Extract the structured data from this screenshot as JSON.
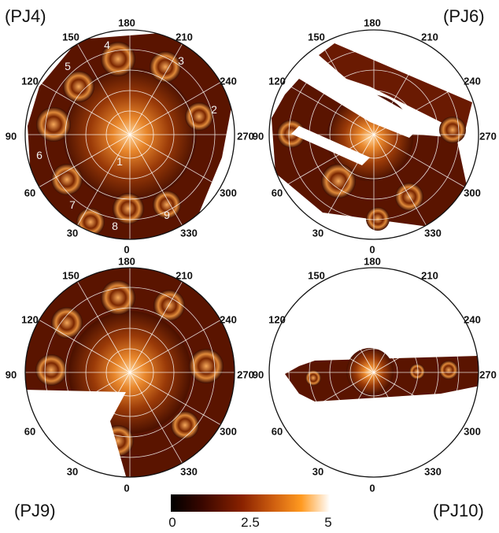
{
  "panels": [
    {
      "label": "(PJ4)",
      "angles": {
        "a180": "180",
        "a150": "150",
        "a210": "210",
        "a120": "120",
        "a240": "240",
        "a90": "90",
        "a270": "270",
        "a60": "60",
        "a300": "300",
        "a30": "30",
        "a330": "330",
        "a0": "0"
      },
      "vortices": [
        "1",
        "2",
        "3",
        "4",
        "5",
        "6",
        "7",
        "8",
        "9"
      ]
    },
    {
      "label": "(PJ6)",
      "angles": {
        "a180": "180",
        "a150": "150",
        "a210": "210",
        "a120": "120",
        "a240": "240",
        "a90": "90",
        "a270": "270",
        "a60": "60",
        "a300": "300",
        "a30": "30",
        "a330": "330",
        "a0": "0"
      }
    },
    {
      "label": "(PJ9)",
      "angles": {
        "a180": "180",
        "a150": "150",
        "a210": "210",
        "a120": "120",
        "a240": "240",
        "a90": "90",
        "a270": "270",
        "a60": "60",
        "a300": "300",
        "a30": "30",
        "a330": "330",
        "a0": "0"
      }
    },
    {
      "label": "(PJ10)",
      "angles": {
        "a180": "180",
        "a150": "150",
        "a210": "210",
        "a120": "120",
        "a240": "240",
        "a90": "90",
        "a270": "270",
        "a60": "60",
        "a300": "300",
        "a30": "30",
        "a330": "330",
        "a0": "0"
      }
    }
  ],
  "colorbar": {
    "ticks": [
      "0",
      "2.5",
      "5"
    ],
    "colors": [
      "#000000",
      "#3a0700",
      "#8a2200",
      "#d06010",
      "#ff9a20",
      "#ffffff"
    ]
  }
}
